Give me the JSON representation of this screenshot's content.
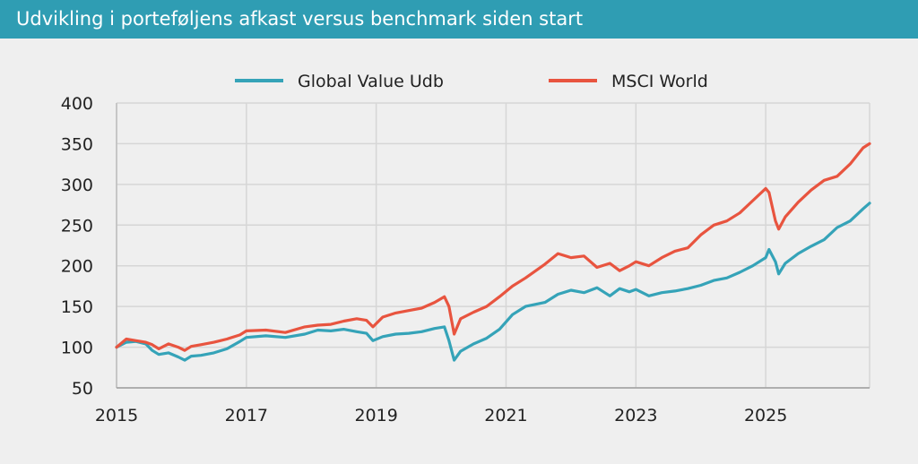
{
  "header": {
    "title": "Udvikling i porteføljens afkast versus benchmark siden start"
  },
  "colors": {
    "header_bg": "#2f9db3",
    "series_global": "#35a3b8",
    "series_msci": "#e8543f",
    "grid": "#d6d6d6"
  },
  "chart_data": {
    "type": "line",
    "title": "Udvikling i porteføljens afkast versus benchmark siden start",
    "xlabel": "",
    "ylabel": "",
    "xlim": [
      2015.0,
      2026.6
    ],
    "ylim": [
      50,
      400
    ],
    "yticks": [
      50,
      100,
      150,
      200,
      250,
      300,
      350,
      400
    ],
    "xticks": [
      2015,
      2017,
      2019,
      2021,
      2023,
      2025
    ],
    "ytick_labels": [
      "50",
      "100",
      "150",
      "200",
      "250",
      "300",
      "350",
      "400"
    ],
    "xtick_labels": [
      "2015",
      "2017",
      "2019",
      "2021",
      "2023",
      "2025"
    ],
    "grid": true,
    "legend": "top-center",
    "series": [
      {
        "name": "Global Value Udb",
        "color": "#35a3b8",
        "x": [
          2015.0,
          2015.15,
          2015.3,
          2015.45,
          2015.55,
          2015.65,
          2015.8,
          2015.95,
          2016.05,
          2016.15,
          2016.3,
          2016.5,
          2016.7,
          2016.9,
          2017.0,
          2017.3,
          2017.6,
          2017.9,
          2018.1,
          2018.3,
          2018.5,
          2018.7,
          2018.85,
          2018.95,
          2019.1,
          2019.3,
          2019.5,
          2019.7,
          2019.9,
          2020.05,
          2020.12,
          2020.2,
          2020.3,
          2020.5,
          2020.7,
          2020.9,
          2021.1,
          2021.3,
          2021.6,
          2021.8,
          2022.0,
          2022.2,
          2022.4,
          2022.6,
          2022.75,
          2022.9,
          2023.0,
          2023.2,
          2023.4,
          2023.6,
          2023.8,
          2024.0,
          2024.2,
          2024.4,
          2024.6,
          2024.8,
          2025.0,
          2025.05,
          2025.15,
          2025.2,
          2025.3,
          2025.5,
          2025.7,
          2025.9,
          2026.1,
          2026.3,
          2026.5,
          2026.6
        ],
        "y": [
          100,
          106,
          107,
          104,
          96,
          91,
          93,
          88,
          84,
          89,
          90,
          93,
          98,
          107,
          112,
          114,
          112,
          116,
          121,
          120,
          122,
          119,
          117,
          108,
          113,
          116,
          117,
          119,
          123,
          125,
          108,
          84,
          95,
          104,
          111,
          122,
          140,
          150,
          155,
          165,
          170,
          167,
          173,
          163,
          172,
          168,
          171,
          163,
          167,
          169,
          172,
          176,
          182,
          185,
          192,
          200,
          210,
          220,
          205,
          190,
          203,
          215,
          224,
          232,
          247,
          255,
          270,
          277
        ]
      },
      {
        "name": "MSCI World",
        "color": "#e8543f",
        "x": [
          2015.0,
          2015.15,
          2015.3,
          2015.45,
          2015.55,
          2015.65,
          2015.8,
          2015.95,
          2016.05,
          2016.15,
          2016.3,
          2016.5,
          2016.7,
          2016.9,
          2017.0,
          2017.3,
          2017.6,
          2017.9,
          2018.1,
          2018.3,
          2018.5,
          2018.7,
          2018.85,
          2018.95,
          2019.1,
          2019.3,
          2019.5,
          2019.7,
          2019.9,
          2020.05,
          2020.12,
          2020.2,
          2020.3,
          2020.5,
          2020.7,
          2020.9,
          2021.1,
          2021.3,
          2021.6,
          2021.8,
          2022.0,
          2022.2,
          2022.4,
          2022.6,
          2022.75,
          2022.9,
          2023.0,
          2023.2,
          2023.4,
          2023.6,
          2023.8,
          2024.0,
          2024.2,
          2024.4,
          2024.6,
          2024.8,
          2025.0,
          2025.05,
          2025.15,
          2025.2,
          2025.3,
          2025.5,
          2025.7,
          2025.9,
          2026.1,
          2026.3,
          2026.5,
          2026.6
        ],
        "y": [
          100,
          110,
          108,
          106,
          103,
          98,
          104,
          100,
          96,
          101,
          103,
          106,
          110,
          115,
          120,
          121,
          118,
          125,
          127,
          128,
          132,
          135,
          133,
          125,
          137,
          142,
          145,
          148,
          155,
          162,
          150,
          116,
          135,
          143,
          150,
          162,
          175,
          185,
          202,
          215,
          210,
          212,
          198,
          203,
          194,
          200,
          205,
          200,
          210,
          218,
          222,
          238,
          250,
          255,
          265,
          280,
          295,
          290,
          255,
          245,
          260,
          278,
          293,
          305,
          310,
          325,
          345,
          350
        ]
      }
    ]
  }
}
